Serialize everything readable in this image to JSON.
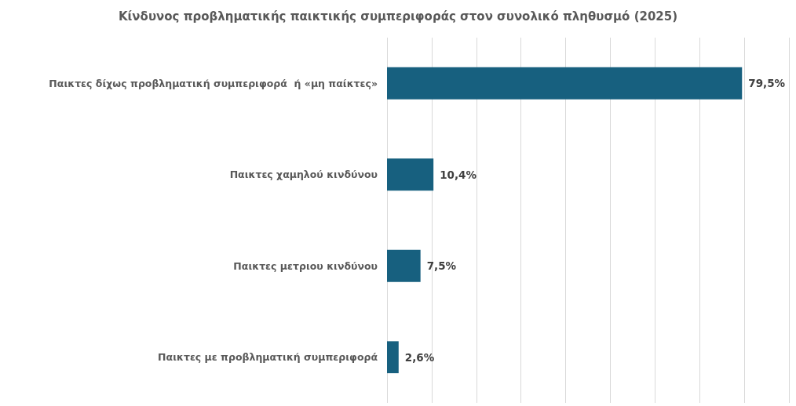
{
  "chart_data": {
    "type": "bar",
    "orientation": "horizontal",
    "title": "Κίνδυνος προβληματικής παικτικής συμπεριφοράς στον συνολικό πληθυσμό (2025)",
    "categories": [
      "Παικτες δίχως προβληματική συμπεριφορά  ή «μη παίκτες»",
      "Παικτες χαμηλού κινδύνου",
      "Παικτες μετριου κινδύνου",
      "Παικτες με προβληματική συμπεριφορά"
    ],
    "values": [
      79.5,
      10.4,
      7.5,
      2.6
    ],
    "value_labels": [
      "79,5%",
      "10,4%",
      "7,5%",
      "2,6%"
    ],
    "color": "#17607f",
    "xlim": [
      0,
      90
    ],
    "xticks": [
      0,
      10,
      20,
      30,
      40,
      50,
      60,
      70,
      80,
      90
    ],
    "tick_labels": "y",
    "grid": "x"
  }
}
